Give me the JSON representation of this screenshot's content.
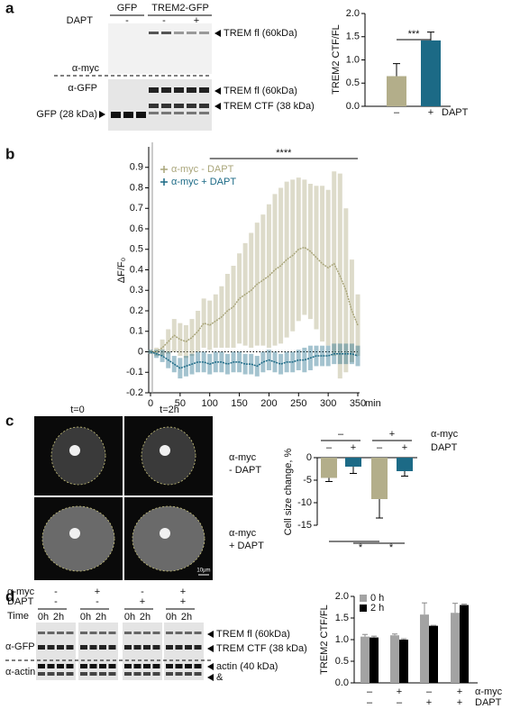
{
  "panel_labels": [
    "a",
    "b",
    "c",
    "d"
  ],
  "blot_a": {
    "header": [
      "GFP",
      "TREM2-GFP"
    ],
    "dapt": {
      "label": "DAPT",
      "signs": [
        "-",
        "-",
        "+"
      ]
    },
    "antibodies": [
      "α-myc",
      "α-GFP"
    ],
    "left_band": "GFP (28 kDa)",
    "right_bands": [
      "TREM fl (60kDa)",
      "TREM fl (60kDa)",
      "TREM CTF (38 kDa)"
    ]
  },
  "images_c": {
    "time_labels": [
      "t=0",
      "t=2h"
    ],
    "row_labels": [
      [
        "α-myc",
        "- DAPT"
      ],
      [
        "α-myc",
        "+ DAPT"
      ]
    ],
    "scale_bar": "10μm"
  },
  "blot_d": {
    "rows": [
      {
        "label": "α-myc",
        "signs": [
          "-",
          "+",
          "-",
          "+"
        ]
      },
      {
        "label": "DAPT",
        "signs": [
          "-",
          "-",
          "+",
          "+"
        ]
      }
    ],
    "time": {
      "label": "Time",
      "values": [
        "0h",
        "2h"
      ]
    },
    "antibodies": [
      "α-GFP",
      "α-actin"
    ],
    "right_bands": [
      "TREM fl (60kDa)",
      "TREM CTF (38 kDa)",
      "actin (40 kDa)",
      "&"
    ]
  },
  "chart_data": [
    {
      "type": "bar",
      "ylabel": "TREM2 CTF/FL",
      "xlabel": "DAPT",
      "categories": [
        "–",
        "+"
      ],
      "values": [
        0.65,
        1.42
      ],
      "errors": [
        0.27,
        0.18
      ],
      "colors": [
        "#b3ae8a",
        "#1c6a86"
      ],
      "ylim": [
        0,
        2
      ],
      "yticks": [
        {
          "value": 0,
          "label": "0.0"
        },
        0.5,
        {
          "value": 1,
          "label": "1.0"
        },
        1.5,
        {
          "value": 2,
          "label": "2.0"
        }
      ],
      "annotation": "***"
    },
    {
      "type": "line",
      "ylabel": "ΔF/F₀",
      "xlabel": "min",
      "annotation": {
        "text": "****",
        "x": [
          100,
          350
        ]
      },
      "x": [
        0,
        10,
        20,
        30,
        40,
        50,
        60,
        70,
        80,
        90,
        100,
        110,
        120,
        130,
        140,
        150,
        160,
        170,
        180,
        190,
        200,
        210,
        220,
        230,
        240,
        250,
        260,
        270,
        280,
        290,
        300,
        310,
        320,
        330,
        340,
        350
      ],
      "series": [
        {
          "name": "α-myc - DAPT",
          "color": "#a9a57a",
          "values": [
            0,
            0,
            0.02,
            0.05,
            0.08,
            0.06,
            0.05,
            0.07,
            0.1,
            0.14,
            0.13,
            0.15,
            0.17,
            0.2,
            0.22,
            0.26,
            0.28,
            0.3,
            0.33,
            0.35,
            0.37,
            0.4,
            0.42,
            0.45,
            0.47,
            0.5,
            0.51,
            0.49,
            0.46,
            0.43,
            0.41,
            0.43,
            0.37,
            0.3,
            0.2,
            0.13
          ],
          "errors": [
            0.01,
            0.02,
            0.04,
            0.06,
            0.08,
            0.08,
            0.08,
            0.09,
            0.1,
            0.12,
            0.12,
            0.13,
            0.15,
            0.18,
            0.2,
            0.22,
            0.25,
            0.28,
            0.3,
            0.32,
            0.35,
            0.37,
            0.38,
            0.38,
            0.37,
            0.35,
            0.33,
            0.33,
            0.35,
            0.38,
            0.38,
            0.45,
            0.5,
            0.4,
            0.25,
            0.15
          ]
        },
        {
          "name": "α-myc + DAPT",
          "color": "#1c6a86",
          "values": [
            0,
            -0.01,
            -0.02,
            -0.04,
            -0.06,
            -0.08,
            -0.07,
            -0.06,
            -0.05,
            -0.05,
            -0.06,
            -0.05,
            -0.05,
            -0.06,
            -0.05,
            -0.05,
            -0.06,
            -0.06,
            -0.07,
            -0.05,
            -0.04,
            -0.05,
            -0.06,
            -0.05,
            -0.05,
            -0.04,
            -0.04,
            -0.03,
            -0.02,
            -0.02,
            -0.02,
            -0.01,
            -0.01,
            -0.01,
            -0.01,
            -0.02
          ],
          "errors": [
            0.01,
            0.02,
            0.03,
            0.04,
            0.04,
            0.05,
            0.05,
            0.05,
            0.05,
            0.05,
            0.05,
            0.05,
            0.05,
            0.05,
            0.05,
            0.05,
            0.05,
            0.05,
            0.05,
            0.05,
            0.05,
            0.05,
            0.05,
            0.05,
            0.05,
            0.05,
            0.06,
            0.06,
            0.05,
            0.05,
            0.05,
            0.05,
            0.05,
            0.05,
            0.05,
            0.05
          ]
        }
      ],
      "xlim": [
        0,
        350
      ],
      "xticks": [
        0,
        50,
        100,
        150,
        200,
        250,
        300,
        350
      ],
      "ylim": [
        -0.2,
        1
      ],
      "yticks": [
        -0.2,
        -0.1,
        0,
        0.1,
        0.2,
        0.3,
        0.4,
        0.5,
        0.6,
        0.7,
        0.8,
        0.9
      ]
    },
    {
      "type": "bar",
      "ylabel": "Cell size change, %",
      "group_header": {
        "label": "α-myc",
        "categories": [
          "–",
          "+"
        ]
      },
      "xlabel": "DAPT",
      "categories": [
        "–",
        "+",
        "–",
        "+"
      ],
      "values": [
        -4.5,
        -2,
        -9.2,
        -3
      ],
      "errors": [
        0.8,
        1.5,
        4.2,
        1.1
      ],
      "colors": [
        "#b3ae8a",
        "#1c6a86",
        "#b3ae8a",
        "#1c6a86"
      ],
      "ylim": [
        -15,
        0
      ],
      "yticks": [
        0,
        -5,
        -10,
        -15
      ],
      "annotations": [
        "*",
        "*"
      ]
    },
    {
      "type": "grouped_bar",
      "ylabel": "TREM2 CTF/FL",
      "xlabel": "α-myc",
      "categories": [
        "–",
        "+",
        "–",
        "+"
      ],
      "xlabel2": "DAPT",
      "categories2": [
        "–",
        "–",
        "+",
        "+"
      ],
      "series": [
        {
          "name": "0 h",
          "color": "#a3a3a3",
          "values": [
            1.07,
            1.1,
            1.58,
            1.62
          ],
          "errors": [
            0.05,
            0.03,
            0.27,
            0.22
          ]
        },
        {
          "name": "2 h",
          "color": "#000000",
          "values": [
            1.05,
            1,
            1.32,
            1.8
          ],
          "errors": [
            0.03,
            0.02,
            0.01,
            0.02
          ]
        }
      ],
      "ylim": [
        0,
        2
      ],
      "yticks": [
        {
          "value": 0,
          "label": "0.0"
        },
        0.5,
        {
          "value": 1,
          "label": "1.0"
        },
        1.5,
        {
          "value": 2,
          "label": "2.0"
        }
      ]
    }
  ]
}
